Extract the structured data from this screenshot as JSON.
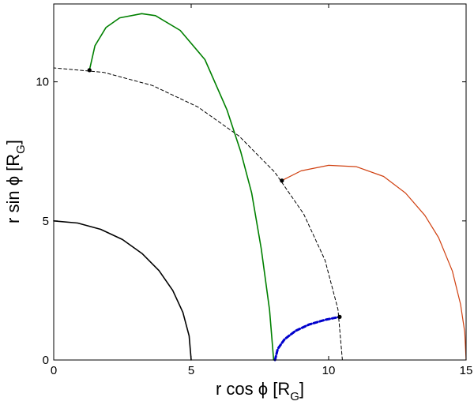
{
  "chart_data": {
    "type": "line",
    "title": "",
    "xlabel": "r cos ϕ [R",
    "xlabel_sub": "G",
    "xlabel_end": "]",
    "ylabel": "r sin ϕ [R",
    "ylabel_sub": "G",
    "ylabel_end": "]",
    "xlim": [
      0,
      15
    ],
    "ylim": [
      0,
      12.8
    ],
    "xticks": [
      0,
      5,
      10,
      15
    ],
    "yticks": [
      0,
      5,
      10
    ],
    "grid": false,
    "series": [
      {
        "style": "solid",
        "color": "#000000",
        "x": [
          5.0,
          4.924,
          4.698,
          4.33,
          3.83,
          3.214,
          2.5,
          1.71,
          0.868,
          0.0
        ],
        "y": [
          0.0,
          0.868,
          1.71,
          2.5,
          3.214,
          3.83,
          4.33,
          4.698,
          4.924,
          5.0
        ]
      },
      {
        "style": "dashed",
        "color": "#000000",
        "x": [
          10.5,
          10.34,
          9.867,
          9.093,
          8.043,
          6.749,
          5.25,
          3.591,
          1.823,
          0.0
        ],
        "y": [
          0.0,
          1.823,
          3.591,
          5.25,
          6.749,
          8.043,
          9.093,
          9.867,
          10.34,
          10.5
        ]
      },
      {
        "style": "solid",
        "color": "#008000",
        "x": [
          1.3,
          1.5,
          1.9,
          2.4,
          3.2,
          3.7,
          4.6,
          5.5,
          6.3,
          6.8,
          7.2,
          7.55,
          7.85,
          8.0
        ],
        "y": [
          10.42,
          11.3,
          11.95,
          12.3,
          12.45,
          12.38,
          11.85,
          10.8,
          9.0,
          7.5,
          6.0,
          4.0,
          1.8,
          0.0
        ]
      },
      {
        "style": "dashed",
        "color": "#0000cc",
        "x": [
          8.05,
          8.15,
          8.4,
          8.8,
          9.3,
          9.9,
          10.4
        ],
        "y": [
          0.0,
          0.4,
          0.75,
          1.05,
          1.28,
          1.45,
          1.55
        ]
      },
      {
        "style": "solid",
        "color": "#d04010",
        "x": [
          8.3,
          9.0,
          10.0,
          11.0,
          12.0,
          12.8,
          13.5,
          14.0,
          14.5,
          14.8,
          14.95,
          15.0
        ],
        "y": [
          6.45,
          6.8,
          7.0,
          6.95,
          6.6,
          6.0,
          5.2,
          4.4,
          3.2,
          2.0,
          1.0,
          0.0
        ]
      }
    ],
    "markers": [
      {
        "x": 1.3,
        "y": 10.42
      },
      {
        "x": 8.3,
        "y": 6.45
      },
      {
        "x": 10.4,
        "y": 1.55
      }
    ]
  }
}
